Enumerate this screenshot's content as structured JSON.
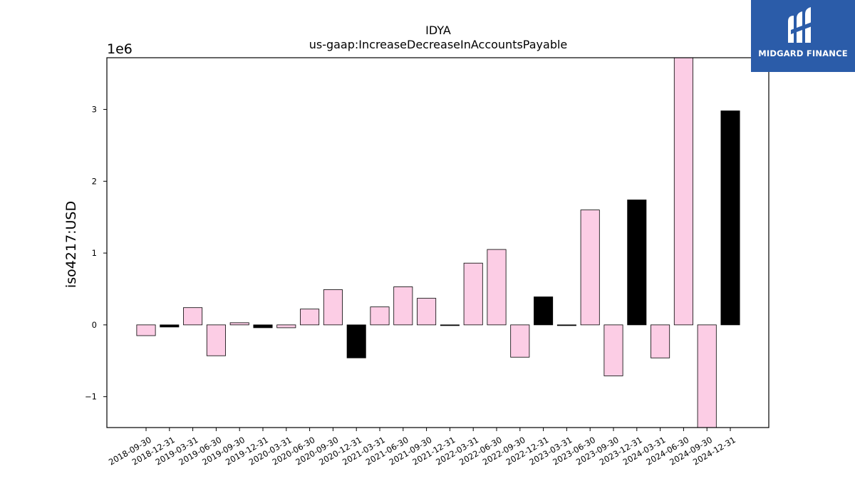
{
  "brand": {
    "name": "MIDGARD FINANCE",
    "bg": "#2b5ca9"
  },
  "chart_data": {
    "type": "bar",
    "title": "IDYA",
    "subtitle": "us-gaap:IncreaseDecreaseInAccountsPayable",
    "ylabel": "iso4217:USD",
    "xlabel": "",
    "y_offset_label": "1e6",
    "y_scale": 1000000,
    "ylim": [
      -1.43,
      3.72
    ],
    "yticks": [
      -1,
      0,
      1,
      2,
      3
    ],
    "ytick_labels": [
      "−1",
      "0",
      "1",
      "2",
      "3"
    ],
    "grid": false,
    "colors": {
      "pink": "#fccde5",
      "black": "#000000"
    },
    "categories": [
      "2018-09-30",
      "2018-12-31",
      "2019-03-31",
      "2019-06-30",
      "2019-09-30",
      "2019-12-31",
      "2020-03-31",
      "2020-06-30",
      "2020-09-30",
      "2020-12-31",
      "2021-03-31",
      "2021-06-30",
      "2021-09-30",
      "2021-12-31",
      "2022-03-31",
      "2022-06-30",
      "2022-09-30",
      "2022-12-31",
      "2023-03-31",
      "2023-06-30",
      "2023-09-30",
      "2023-12-31",
      "2024-03-31",
      "2024-06-30",
      "2024-09-30",
      "2024-12-31"
    ],
    "values": [
      -0.15,
      -0.03,
      0.24,
      -0.43,
      0.03,
      -0.04,
      -0.04,
      0.22,
      0.49,
      -0.46,
      0.25,
      0.53,
      0.37,
      -0.01,
      0.86,
      1.05,
      -0.45,
      0.39,
      -0.01,
      1.6,
      -0.71,
      1.74,
      -0.46,
      3.9,
      -1.6,
      2.98
    ],
    "bar_colors": [
      "pink",
      "black",
      "pink",
      "pink",
      "pink",
      "black",
      "pink",
      "pink",
      "pink",
      "black",
      "pink",
      "pink",
      "pink",
      "black",
      "pink",
      "pink",
      "pink",
      "black",
      "black",
      "pink",
      "pink",
      "black",
      "pink",
      "pink",
      "pink",
      "black"
    ]
  }
}
